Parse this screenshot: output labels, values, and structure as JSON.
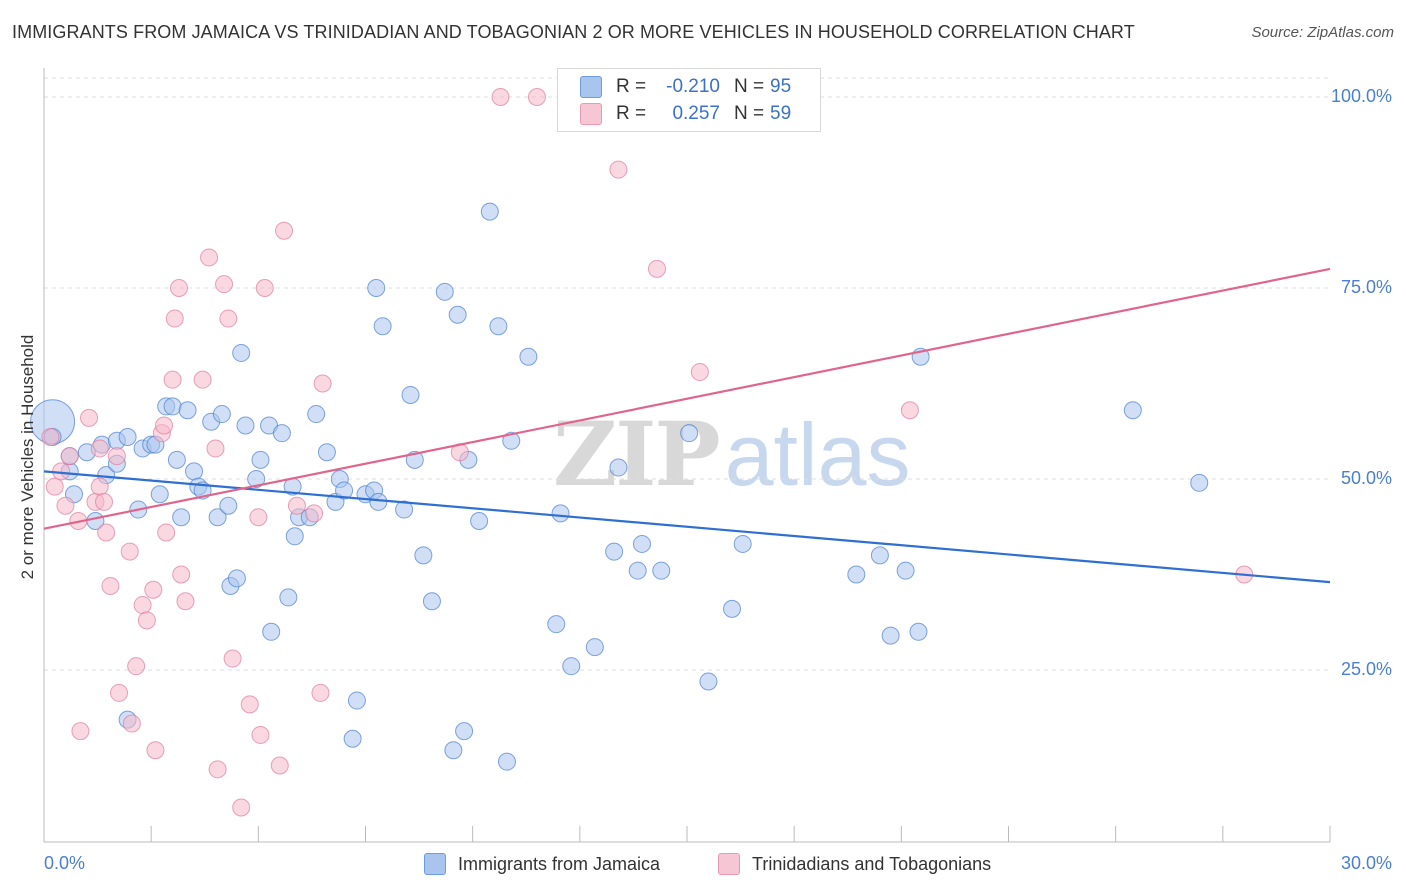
{
  "title": "IMMIGRANTS FROM JAMAICA VS TRINIDADIAN AND TOBAGONIAN 2 OR MORE VEHICLES IN HOUSEHOLD CORRELATION CHART",
  "source": "Source: ZipAtlas.com",
  "watermark": {
    "zip": "ZIP",
    "atlas": "atlas"
  },
  "stats": {
    "rows": [
      {
        "r_label": "R =",
        "r_value": "-0.210",
        "n_label": "N =",
        "n_value": "95",
        "color": "#a9c5ee"
      },
      {
        "r_label": "R =",
        "r_value": "0.257",
        "n_label": "N =",
        "n_value": "59",
        "color": "#f6b8cb"
      }
    ]
  },
  "legend": [
    {
      "label": "Immigrants from Jamaica",
      "color": "#a9c5ee"
    },
    {
      "label": "Trinidadians and Tobagonians",
      "color": "#f6b8cb"
    }
  ],
  "chart_data": {
    "type": "scatter",
    "title": "IMMIGRANTS FROM JAMAICA VS TRINIDADIAN AND TOBAGONIAN 2 OR MORE VEHICLES IN HOUSEHOLD CORRELATION CHART",
    "xlabel": "",
    "ylabel": "2 or more Vehicles in Household",
    "xlim": [
      0,
      30
    ],
    "ylim": [
      0,
      100
    ],
    "x_ticks": [
      "0.0%",
      "30.0%"
    ],
    "y_ticks": [
      "25.0%",
      "50.0%",
      "75.0%",
      "100.0%"
    ],
    "y_tick_values": [
      25,
      50,
      75,
      100
    ],
    "grid": true,
    "legend_position": "bottom",
    "series": [
      {
        "name": "Immigrants from Jamaica",
        "color": "#4a7fd0",
        "fill": "#a9c5ee",
        "trend": {
          "x": [
            0,
            30
          ],
          "y": [
            51.0,
            36.5
          ],
          "color": "#2f6fd1"
        },
        "points": [
          [
            0.2,
            57.5
          ],
          [
            0.2,
            55.5
          ],
          [
            0.6,
            51.0
          ],
          [
            0.6,
            53.0
          ],
          [
            0.7,
            48.0
          ],
          [
            1.0,
            53.5
          ],
          [
            1.2,
            44.5
          ],
          [
            1.35,
            54.5
          ],
          [
            1.45,
            50.5
          ],
          [
            1.7,
            52.0
          ],
          [
            1.7,
            55.0
          ],
          [
            1.95,
            55.5
          ],
          [
            1.95,
            18.5
          ],
          [
            2.2,
            46.0
          ],
          [
            2.3,
            54.0
          ],
          [
            2.5,
            54.5
          ],
          [
            2.6,
            54.5
          ],
          [
            2.7,
            48.0
          ],
          [
            2.85,
            59.5
          ],
          [
            3.0,
            59.5
          ],
          [
            3.1,
            52.5
          ],
          [
            3.2,
            45.0
          ],
          [
            3.35,
            59.0
          ],
          [
            3.5,
            51.0
          ],
          [
            3.6,
            49.0
          ],
          [
            3.7,
            48.5
          ],
          [
            3.9,
            57.5
          ],
          [
            4.05,
            45.0
          ],
          [
            4.15,
            58.5
          ],
          [
            4.3,
            46.5
          ],
          [
            4.35,
            36.0
          ],
          [
            4.5,
            37.0
          ],
          [
            4.6,
            66.5
          ],
          [
            4.7,
            57.0
          ],
          [
            4.95,
            50.0
          ],
          [
            5.05,
            52.5
          ],
          [
            5.25,
            57.0
          ],
          [
            5.3,
            30.0
          ],
          [
            5.55,
            56.0
          ],
          [
            5.7,
            34.5
          ],
          [
            5.8,
            49.0
          ],
          [
            5.85,
            42.5
          ],
          [
            5.95,
            45.0
          ],
          [
            6.2,
            45.0
          ],
          [
            6.35,
            58.5
          ],
          [
            6.6,
            53.5
          ],
          [
            6.8,
            47.0
          ],
          [
            6.9,
            50.0
          ],
          [
            7.0,
            48.5
          ],
          [
            7.2,
            16.0
          ],
          [
            7.3,
            21.0
          ],
          [
            7.5,
            48.0
          ],
          [
            7.7,
            48.5
          ],
          [
            7.75,
            75.0
          ],
          [
            7.8,
            47.0
          ],
          [
            7.9,
            70.0
          ],
          [
            8.4,
            46.0
          ],
          [
            8.55,
            61.0
          ],
          [
            8.65,
            52.5
          ],
          [
            8.85,
            40.0
          ],
          [
            9.05,
            34.0
          ],
          [
            9.35,
            74.5
          ],
          [
            9.55,
            14.5
          ],
          [
            9.65,
            71.5
          ],
          [
            9.8,
            17.0
          ],
          [
            9.9,
            52.5
          ],
          [
            10.15,
            44.5
          ],
          [
            10.4,
            85.0
          ],
          [
            10.6,
            70.0
          ],
          [
            10.8,
            13.0
          ],
          [
            10.9,
            55.0
          ],
          [
            11.3,
            66.0
          ],
          [
            11.95,
            31.0
          ],
          [
            12.05,
            45.5
          ],
          [
            12.3,
            25.5
          ],
          [
            12.85,
            28.0
          ],
          [
            13.3,
            40.5
          ],
          [
            13.4,
            51.5
          ],
          [
            13.85,
            38.0
          ],
          [
            13.95,
            41.5
          ],
          [
            14.4,
            38.0
          ],
          [
            15.05,
            56.0
          ],
          [
            15.5,
            23.5
          ],
          [
            16.05,
            33.0
          ],
          [
            16.3,
            41.5
          ],
          [
            18.95,
            37.5
          ],
          [
            19.5,
            40.0
          ],
          [
            19.75,
            29.5
          ],
          [
            20.1,
            38.0
          ],
          [
            20.4,
            30.0
          ],
          [
            20.45,
            66.0
          ],
          [
            25.4,
            59.0
          ],
          [
            26.95,
            49.5
          ]
        ]
      },
      {
        "name": "Trinidadians and Tobagonians",
        "color": "#e07a9c",
        "fill": "#f6b8cb",
        "trend": {
          "x": [
            0,
            30
          ],
          "y": [
            43.5,
            77.5
          ],
          "color": "#e0658d"
        },
        "points": [
          [
            0.15,
            55.5
          ],
          [
            0.25,
            49.0
          ],
          [
            0.4,
            51.0
          ],
          [
            0.5,
            46.5
          ],
          [
            0.6,
            53.0
          ],
          [
            0.8,
            44.5
          ],
          [
            0.85,
            17.0
          ],
          [
            1.05,
            58.0
          ],
          [
            1.2,
            47.0
          ],
          [
            1.3,
            54.0
          ],
          [
            1.3,
            49.0
          ],
          [
            1.4,
            47.0
          ],
          [
            1.45,
            43.0
          ],
          [
            1.55,
            36.0
          ],
          [
            1.7,
            53.0
          ],
          [
            1.75,
            22.0
          ],
          [
            2.0,
            40.5
          ],
          [
            2.05,
            18.0
          ],
          [
            2.15,
            25.5
          ],
          [
            2.3,
            33.5
          ],
          [
            2.4,
            31.5
          ],
          [
            2.55,
            35.5
          ],
          [
            2.6,
            14.5
          ],
          [
            2.75,
            56.0
          ],
          [
            2.8,
            57.0
          ],
          [
            2.85,
            43.0
          ],
          [
            3.0,
            63.0
          ],
          [
            3.05,
            71.0
          ],
          [
            3.15,
            75.0
          ],
          [
            3.2,
            37.5
          ],
          [
            3.3,
            34.0
          ],
          [
            3.7,
            63.0
          ],
          [
            3.85,
            79.0
          ],
          [
            4.0,
            54.0
          ],
          [
            4.05,
            12.0
          ],
          [
            4.2,
            75.5
          ],
          [
            4.3,
            71.0
          ],
          [
            4.4,
            26.5
          ],
          [
            4.6,
            7.0
          ],
          [
            4.8,
            20.5
          ],
          [
            5.0,
            45.0
          ],
          [
            5.05,
            16.5
          ],
          [
            5.15,
            75.0
          ],
          [
            5.5,
            12.5
          ],
          [
            5.6,
            82.5
          ],
          [
            5.9,
            46.5
          ],
          [
            6.3,
            45.5
          ],
          [
            6.45,
            22.0
          ],
          [
            6.5,
            62.5
          ],
          [
            9.7,
            53.5
          ],
          [
            10.65,
            100.0
          ],
          [
            11.5,
            100.0
          ],
          [
            13.4,
            90.5
          ],
          [
            14.3,
            77.5
          ],
          [
            15.3,
            64.0
          ],
          [
            20.2,
            59.0
          ],
          [
            28.0,
            37.5
          ]
        ]
      }
    ]
  }
}
